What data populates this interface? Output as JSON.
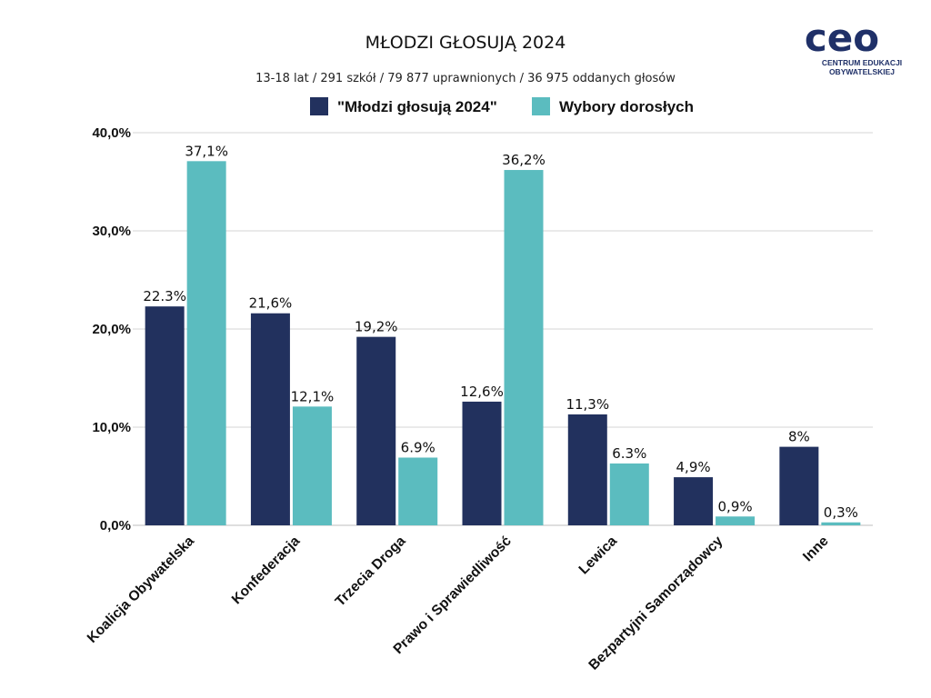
{
  "logo": {
    "word": "ceo",
    "line1": "CENTRUM EDUKACJI",
    "line2": "OBYWATELSKIEJ"
  },
  "colors": {
    "series1": "#22315e",
    "series2": "#5bbcbf",
    "grid": "#d4d4d4",
    "axis": "#bdbdbd"
  },
  "chart_data": {
    "type": "bar",
    "title": "MŁODZI GŁOSUJĄ 2024",
    "subtitle": "13-18 lat / 291 szkół / 79 877 uprawnionych / 36 975 oddanych głosów",
    "legend_position": "top-center",
    "grid": true,
    "ylim": [
      0,
      40
    ],
    "yticks": [
      "0,0%",
      "10,0%",
      "20,0%",
      "30,0%",
      "40,0%"
    ],
    "categories": [
      "Koalicja Obywatelska",
      "Konfederacja",
      "Trzecia Droga",
      "Prawo i Sprawiedliwość",
      "Lewica",
      "Bezpartyjni Samorządowcy",
      "Inne"
    ],
    "series": [
      {
        "name": "\"Młodzi głosują 2024\"",
        "values": [
          22.3,
          21.6,
          19.2,
          12.6,
          11.3,
          4.9,
          8
        ],
        "labels": [
          "22.3%",
          "21,6%",
          "19,2%",
          "12,6%",
          "11,3%",
          "4,9%",
          "8%"
        ]
      },
      {
        "name": "Wybory dorosłych",
        "values": [
          37.1,
          12.1,
          6.9,
          36.2,
          6.3,
          0.9,
          0.3
        ],
        "labels": [
          "37,1%",
          "12,1%",
          "6.9%",
          "36,2%",
          "6.3%",
          "0,9%",
          "0,3%"
        ]
      }
    ]
  }
}
